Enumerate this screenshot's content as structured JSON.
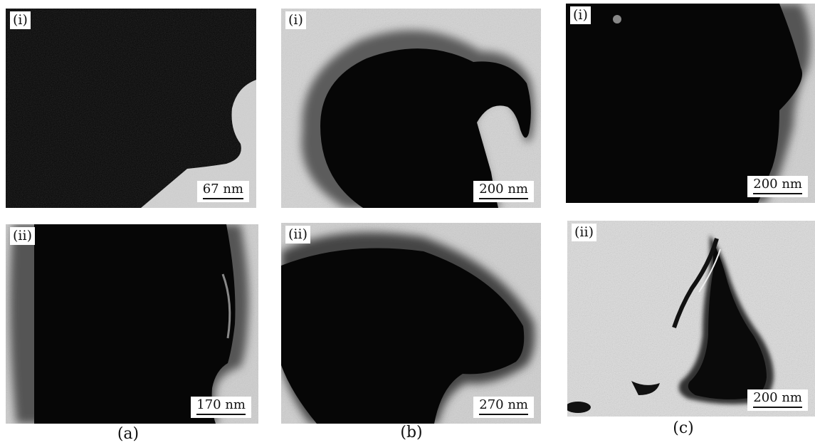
{
  "panels": {
    "a_i": {
      "label": "(i)",
      "scale": "67 nm"
    },
    "b_i": {
      "label": "(i)",
      "scale": "200 nm"
    },
    "c_i": {
      "label": "(i)",
      "scale": "200 nm"
    },
    "a_ii": {
      "label": "(ii)",
      "scale": "170 nm"
    },
    "b_ii": {
      "label": "(ii)",
      "scale": "270 nm"
    },
    "c_ii": {
      "label": "(ii)",
      "scale": "200 nm"
    }
  },
  "captions": {
    "a": "(a)",
    "b": "(b)",
    "c": "(c)"
  },
  "colors": {
    "particle": "#050505",
    "background": "#c8c8c8",
    "halo": "#6a6a6a"
  }
}
